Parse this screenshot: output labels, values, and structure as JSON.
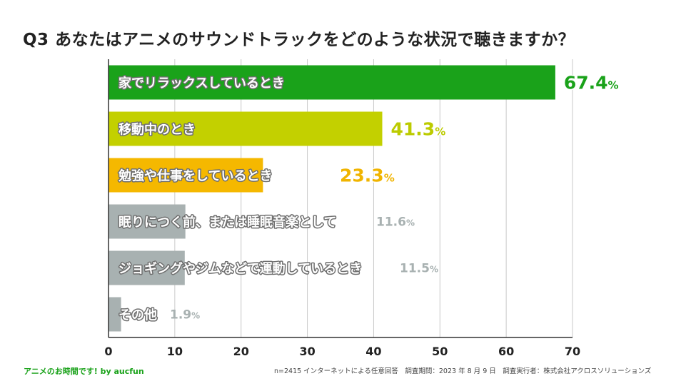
{
  "title": "Q3  あなたはアニメのサウンドトラックをどのような状況で聴きますか？",
  "chart_data": {
    "type": "bar",
    "orientation": "horizontal",
    "title": "Q3  あなたはアニメのサウンドトラックをどのような状況で聴きますか？",
    "categories": [
      "家でリラックスしているとき",
      "移動中のとき",
      "勉強や仕事をしているとき",
      "眠りにつく前、または睡眠音楽として",
      "ジョギングやジムなどで運動しているとき",
      "その他"
    ],
    "values": [
      67.4,
      41.3,
      23.3,
      11.6,
      11.5,
      1.9
    ],
    "unit": "%",
    "colors": [
      "#1aa21a",
      "#c3d000",
      "#f5b800",
      "#a8b1b1",
      "#a8b1b1",
      "#a8b1b1"
    ],
    "value_colors": [
      "#1aa21a",
      "#bccb00",
      "#f0b400",
      "#a8b1b1",
      "#a8b1b1",
      "#a8b1b1"
    ],
    "xlim": [
      0,
      70
    ],
    "xticks": [
      0,
      10,
      20,
      30,
      40,
      50,
      60,
      70
    ],
    "grid": true
  },
  "footer": {
    "brand": "アニメのお時間です! by aucfun",
    "note": "n=2415 インターネットによる任意回答　調査期間：2023 年 8 月 9 日　調査実行者：株式会社アクロスソリューションズ"
  }
}
